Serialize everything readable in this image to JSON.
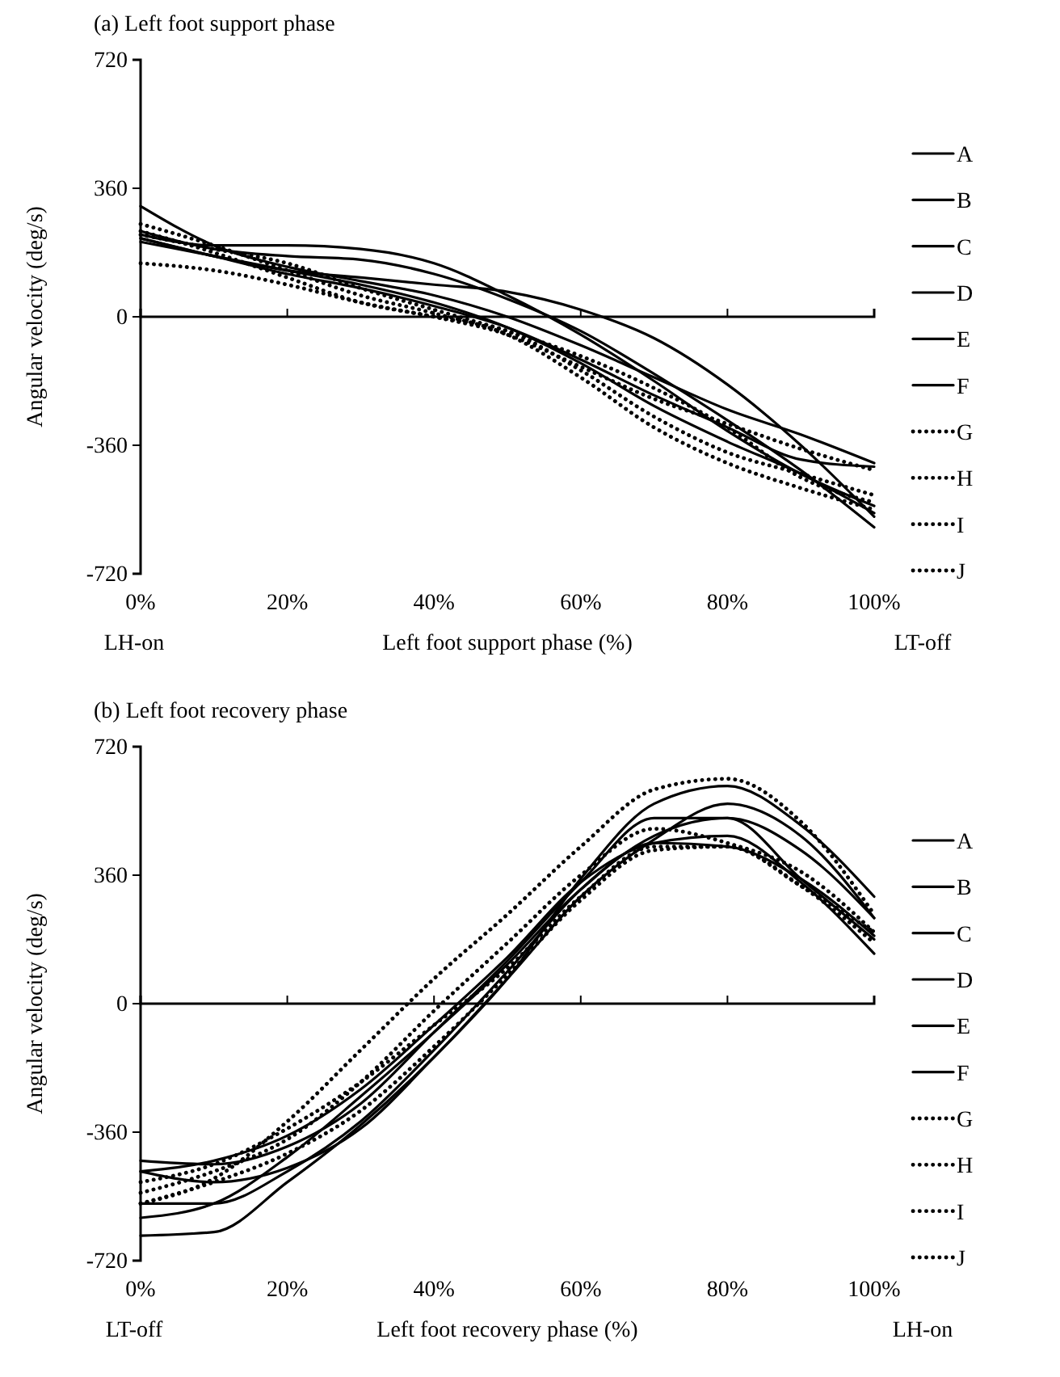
{
  "chart_data": [
    {
      "type": "line",
      "title": "(a) Left foot support phase",
      "xlabel": "Left foot support phase (%)",
      "ylabel": "Angular velocity (deg/s)",
      "x": [
        0,
        10,
        20,
        30,
        40,
        50,
        60,
        70,
        80,
        90,
        100
      ],
      "xlim": [
        0,
        100
      ],
      "xticks": [
        {
          "value": 0,
          "label": "0%"
        },
        {
          "value": 20,
          "label": "20%"
        },
        {
          "value": 40,
          "label": "40%"
        },
        {
          "value": 60,
          "label": "60%"
        },
        {
          "value": 80,
          "label": "80%"
        },
        {
          "value": 100,
          "label": "100%"
        }
      ],
      "ylim": [
        -720,
        720
      ],
      "yticks": [
        -720,
        -360,
        0,
        360,
        720
      ],
      "grid": false,
      "legend": "right",
      "marker": "none",
      "annotations": [
        "LH-on",
        "LT-off"
      ],
      "series": [
        {
          "name": "A",
          "color": "#000000",
          "line_style": "solid",
          "values": [
            310,
            200,
            140,
            100,
            60,
            0,
            -80,
            -170,
            -260,
            -330,
            -410
          ]
        },
        {
          "name": "B",
          "color": "#000000",
          "line_style": "solid",
          "values": [
            240,
            190,
            170,
            160,
            120,
            50,
            -40,
            -160,
            -290,
            -430,
            -590
          ]
        },
        {
          "name": "C",
          "color": "#000000",
          "line_style": "solid",
          "values": [
            220,
            170,
            130,
            110,
            90,
            70,
            20,
            -60,
            -190,
            -360,
            -560
          ]
        },
        {
          "name": "D",
          "color": "#000000",
          "line_style": "solid",
          "values": [
            230,
            200,
            200,
            190,
            150,
            60,
            -50,
            -180,
            -320,
            -440,
            -530
          ]
        },
        {
          "name": "E",
          "color": "#000000",
          "line_style": "solid",
          "values": [
            220,
            170,
            120,
            80,
            30,
            -30,
            -120,
            -220,
            -310,
            -400,
            -420
          ]
        },
        {
          "name": "F",
          "color": "#000000",
          "line_style": "solid",
          "values": [
            210,
            170,
            130,
            90,
            40,
            -30,
            -130,
            -250,
            -350,
            -440,
            -550
          ]
        },
        {
          "name": "G",
          "color": "#000000",
          "line_style": "dotted",
          "values": [
            150,
            130,
            90,
            40,
            0,
            -40,
            -150,
            -280,
            -380,
            -440,
            -500
          ]
        },
        {
          "name": "H",
          "color": "#000000",
          "line_style": "dotted",
          "values": [
            260,
            200,
            130,
            60,
            10,
            -50,
            -170,
            -310,
            -410,
            -480,
            -540
          ]
        },
        {
          "name": "I",
          "color": "#000000",
          "line_style": "dotted",
          "values": [
            240,
            180,
            110,
            40,
            0,
            -50,
            -140,
            -230,
            -300,
            -370,
            -430
          ]
        },
        {
          "name": "J",
          "color": "#000000",
          "line_style": "dotted",
          "values": [
            230,
            190,
            150,
            80,
            20,
            -40,
            -110,
            -200,
            -310,
            -450,
            -520
          ]
        }
      ]
    },
    {
      "type": "line",
      "title": "(b) Left foot recovery phase",
      "xlabel": "Left foot recovery phase (%)",
      "ylabel": "Angular velocity (deg/s)",
      "x": [
        0,
        10,
        20,
        30,
        40,
        50,
        60,
        70,
        80,
        90,
        100
      ],
      "xlim": [
        0,
        100
      ],
      "xticks": [
        {
          "value": 0,
          "label": "0%"
        },
        {
          "value": 20,
          "label": "20%"
        },
        {
          "value": 40,
          "label": "40%"
        },
        {
          "value": 60,
          "label": "60%"
        },
        {
          "value": 80,
          "label": "80%"
        },
        {
          "value": 100,
          "label": "100%"
        }
      ],
      "ylim": [
        -720,
        720
      ],
      "yticks": [
        -720,
        -360,
        0,
        360,
        720
      ],
      "grid": false,
      "legend": "right",
      "marker": "none",
      "annotations": [
        "LT-off",
        "LH-on"
      ],
      "series": [
        {
          "name": "A",
          "color": "#000000",
          "line_style": "solid",
          "values": [
            -470,
            -500,
            -460,
            -350,
            -150,
            70,
            350,
            560,
            610,
            500,
            300
          ]
        },
        {
          "name": "B",
          "color": "#000000",
          "line_style": "solid",
          "values": [
            -560,
            -560,
            -470,
            -330,
            -130,
            90,
            320,
            470,
            520,
            430,
            240
          ]
        },
        {
          "name": "C",
          "color": "#000000",
          "line_style": "solid",
          "values": [
            -650,
            -640,
            -500,
            -340,
            -150,
            70,
            300,
            460,
            560,
            470,
            240
          ]
        },
        {
          "name": "D",
          "color": "#000000",
          "line_style": "solid",
          "values": [
            -440,
            -450,
            -400,
            -280,
            -80,
            120,
            340,
            520,
            520,
            350,
            180
          ]
        },
        {
          "name": "E",
          "color": "#000000",
          "line_style": "solid",
          "values": [
            -470,
            -440,
            -370,
            -240,
            -60,
            130,
            340,
            450,
            470,
            340,
            140
          ]
        },
        {
          "name": "F",
          "color": "#000000",
          "line_style": "solid",
          "values": [
            -600,
            -560,
            -430,
            -260,
            -80,
            110,
            320,
            450,
            440,
            350,
            190
          ]
        },
        {
          "name": "G",
          "color": "#000000",
          "line_style": "dotted",
          "values": [
            -500,
            -450,
            -350,
            -220,
            -60,
            100,
            300,
            440,
            440,
            330,
            170
          ]
        },
        {
          "name": "H",
          "color": "#000000",
          "line_style": "dotted",
          "values": [
            -560,
            -490,
            -330,
            -130,
            70,
            250,
            440,
            600,
            630,
            510,
            250
          ]
        },
        {
          "name": "I",
          "color": "#000000",
          "line_style": "dotted",
          "values": [
            -560,
            -500,
            -420,
            -300,
            -120,
            80,
            290,
            430,
            440,
            330,
            200
          ]
        },
        {
          "name": "J",
          "color": "#000000",
          "line_style": "dotted",
          "values": [
            -530,
            -470,
            -380,
            -220,
            -20,
            170,
            360,
            490,
            450,
            370,
            200
          ]
        }
      ]
    }
  ]
}
